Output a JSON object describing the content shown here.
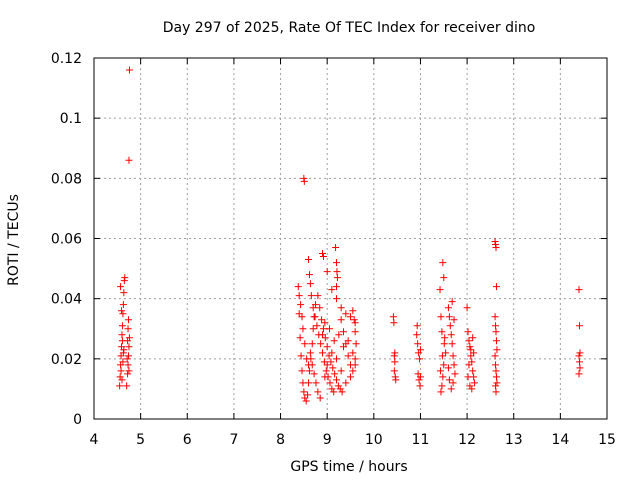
{
  "chart_data": {
    "type": "scatter",
    "title": "Day 297 of 2025, Rate Of TEC Index for receiver dino",
    "xlabel": "GPS time / hours",
    "ylabel": "ROTI / TECUs",
    "xlim": [
      4,
      15
    ],
    "ylim": [
      0,
      0.12
    ],
    "x_ticks": [
      4,
      5,
      6,
      7,
      8,
      9,
      10,
      11,
      12,
      13,
      14,
      15
    ],
    "y_ticks": [
      0,
      0.02,
      0.04,
      0.06,
      0.08,
      0.1,
      0.12
    ],
    "x_tick_labels": [
      "4",
      "5",
      "6",
      "7",
      "8",
      "9",
      "10",
      "11",
      "12",
      "13",
      "14",
      "15"
    ],
    "y_tick_labels": [
      "0",
      "0.02",
      "0.04",
      "0.06",
      "0.08",
      "0.1",
      "0.12"
    ],
    "grid": true,
    "marker": "+",
    "color": "#ff0000",
    "points": [
      [
        4.55,
        0.011
      ],
      [
        4.56,
        0.014
      ],
      [
        4.57,
        0.018
      ],
      [
        4.58,
        0.021
      ],
      [
        4.59,
        0.024
      ],
      [
        4.6,
        0.028
      ],
      [
        4.61,
        0.031
      ],
      [
        4.62,
        0.035
      ],
      [
        4.63,
        0.038
      ],
      [
        4.64,
        0.042
      ],
      [
        4.65,
        0.046
      ],
      [
        4.66,
        0.047
      ],
      [
        4.57,
        0.044
      ],
      [
        4.59,
        0.036
      ],
      [
        4.61,
        0.026
      ],
      [
        4.63,
        0.022
      ],
      [
        4.58,
        0.016
      ],
      [
        4.6,
        0.013
      ],
      [
        4.62,
        0.019
      ],
      [
        4.64,
        0.023
      ],
      [
        4.7,
        0.011
      ],
      [
        4.72,
        0.015
      ],
      [
        4.73,
        0.018
      ],
      [
        4.74,
        0.021
      ],
      [
        4.75,
        0.024
      ],
      [
        4.76,
        0.027
      ],
      [
        4.73,
        0.03
      ],
      [
        4.74,
        0.033
      ],
      [
        4.72,
        0.026
      ],
      [
        4.71,
        0.02
      ],
      [
        4.75,
        0.016
      ],
      [
        4.76,
        0.116
      ],
      [
        4.75,
        0.086
      ],
      [
        8.38,
        0.044
      ],
      [
        8.4,
        0.035
      ],
      [
        8.42,
        0.027
      ],
      [
        8.44,
        0.021
      ],
      [
        8.46,
        0.016
      ],
      [
        8.48,
        0.012
      ],
      [
        8.5,
        0.009
      ],
      [
        8.52,
        0.007
      ],
      [
        8.55,
        0.006
      ],
      [
        8.58,
        0.008
      ],
      [
        8.6,
        0.012
      ],
      [
        8.62,
        0.016
      ],
      [
        8.65,
        0.02
      ],
      [
        8.68,
        0.025
      ],
      [
        8.7,
        0.03
      ],
      [
        8.72,
        0.034
      ],
      [
        8.75,
        0.038
      ],
      [
        8.4,
        0.041
      ],
      [
        8.43,
        0.038
      ],
      [
        8.46,
        0.034
      ],
      [
        8.48,
        0.03
      ],
      [
        8.52,
        0.025
      ],
      [
        8.56,
        0.02
      ],
      [
        8.6,
        0.018
      ],
      [
        8.64,
        0.022
      ],
      [
        8.68,
        0.018
      ],
      [
        8.72,
        0.015
      ],
      [
        8.76,
        0.012
      ],
      [
        8.8,
        0.009
      ],
      [
        8.85,
        0.007
      ],
      [
        8.5,
        0.08
      ],
      [
        8.51,
        0.079
      ],
      [
        8.6,
        0.053
      ],
      [
        8.62,
        0.048
      ],
      [
        8.64,
        0.045
      ],
      [
        8.66,
        0.041
      ],
      [
        8.7,
        0.037
      ],
      [
        8.74,
        0.034
      ],
      [
        8.78,
        0.031
      ],
      [
        8.82,
        0.028
      ],
      [
        8.86,
        0.025
      ],
      [
        8.9,
        0.022
      ],
      [
        8.94,
        0.019
      ],
      [
        8.98,
        0.016
      ],
      [
        9.02,
        0.014
      ],
      [
        9.06,
        0.012
      ],
      [
        9.1,
        0.01
      ],
      [
        9.14,
        0.009
      ],
      [
        8.8,
        0.041
      ],
      [
        8.84,
        0.037
      ],
      [
        8.88,
        0.033
      ],
      [
        8.92,
        0.03
      ],
      [
        8.96,
        0.027
      ],
      [
        9.0,
        0.024
      ],
      [
        9.04,
        0.021
      ],
      [
        9.08,
        0.019
      ],
      [
        9.12,
        0.017
      ],
      [
        9.16,
        0.015
      ],
      [
        9.2,
        0.013
      ],
      [
        9.24,
        0.011
      ],
      [
        9.28,
        0.01
      ],
      [
        9.32,
        0.009
      ],
      [
        8.9,
        0.055
      ],
      [
        8.92,
        0.054
      ],
      [
        9.0,
        0.049
      ],
      [
        9.1,
        0.043
      ],
      [
        9.2,
        0.04
      ],
      [
        9.3,
        0.037
      ],
      [
        9.4,
        0.035
      ],
      [
        9.5,
        0.034
      ],
      [
        9.55,
        0.036
      ],
      [
        9.6,
        0.032
      ],
      [
        9.18,
        0.057
      ],
      [
        9.2,
        0.052
      ],
      [
        9.21,
        0.049
      ],
      [
        9.22,
        0.047
      ],
      [
        9.2,
        0.044
      ],
      [
        8.9,
        0.028
      ],
      [
        8.95,
        0.032
      ],
      [
        9.05,
        0.03
      ],
      [
        9.15,
        0.026
      ],
      [
        9.25,
        0.028
      ],
      [
        9.35,
        0.024
      ],
      [
        9.45,
        0.026
      ],
      [
        9.55,
        0.022
      ],
      [
        9.6,
        0.018
      ],
      [
        9.5,
        0.014
      ],
      [
        9.4,
        0.012
      ],
      [
        9.3,
        0.016
      ],
      [
        9.2,
        0.02
      ],
      [
        9.1,
        0.022
      ],
      [
        9.0,
        0.018
      ],
      [
        8.95,
        0.014
      ],
      [
        9.3,
        0.033
      ],
      [
        9.35,
        0.029
      ],
      [
        9.4,
        0.025
      ],
      [
        9.45,
        0.021
      ],
      [
        9.5,
        0.018
      ],
      [
        9.55,
        0.016
      ],
      [
        9.6,
        0.02
      ],
      [
        9.62,
        0.025
      ],
      [
        9.6,
        0.029
      ],
      [
        9.58,
        0.033
      ],
      [
        10.42,
        0.034
      ],
      [
        10.43,
        0.032
      ],
      [
        10.44,
        0.021
      ],
      [
        10.45,
        0.019
      ],
      [
        10.46,
        0.014
      ],
      [
        10.47,
        0.013
      ],
      [
        10.44,
        0.016
      ],
      [
        10.45,
        0.022
      ],
      [
        10.92,
        0.028
      ],
      [
        10.94,
        0.025
      ],
      [
        10.96,
        0.022
      ],
      [
        10.98,
        0.02
      ],
      [
        11.0,
        0.023
      ],
      [
        10.95,
        0.015
      ],
      [
        10.97,
        0.013
      ],
      [
        10.99,
        0.011
      ],
      [
        11.0,
        0.014
      ],
      [
        10.93,
        0.031
      ],
      [
        11.42,
        0.043
      ],
      [
        11.44,
        0.034
      ],
      [
        11.46,
        0.029
      ],
      [
        11.48,
        0.052
      ],
      [
        11.5,
        0.047
      ],
      [
        11.52,
        0.027
      ],
      [
        11.54,
        0.022
      ],
      [
        11.5,
        0.018
      ],
      [
        11.48,
        0.014
      ],
      [
        11.46,
        0.011
      ],
      [
        11.44,
        0.009
      ],
      [
        11.43,
        0.016
      ],
      [
        11.47,
        0.021
      ],
      [
        11.51,
        0.025
      ],
      [
        11.6,
        0.037
      ],
      [
        11.62,
        0.034
      ],
      [
        11.64,
        0.031
      ],
      [
        11.66,
        0.028
      ],
      [
        11.68,
        0.025
      ],
      [
        11.7,
        0.021
      ],
      [
        11.72,
        0.018
      ],
      [
        11.74,
        0.015
      ],
      [
        11.7,
        0.012
      ],
      [
        11.66,
        0.01
      ],
      [
        11.62,
        0.013
      ],
      [
        11.6,
        0.017
      ],
      [
        11.68,
        0.039
      ],
      [
        11.72,
        0.033
      ],
      [
        12.0,
        0.037
      ],
      [
        12.02,
        0.029
      ],
      [
        12.04,
        0.026
      ],
      [
        12.06,
        0.024
      ],
      [
        12.08,
        0.021
      ],
      [
        12.1,
        0.019
      ],
      [
        12.12,
        0.016
      ],
      [
        12.14,
        0.014
      ],
      [
        12.16,
        0.012
      ],
      [
        12.1,
        0.01
      ],
      [
        12.06,
        0.011
      ],
      [
        12.02,
        0.014
      ],
      [
        12.04,
        0.018
      ],
      [
        12.08,
        0.023
      ],
      [
        12.12,
        0.027
      ],
      [
        12.14,
        0.022
      ],
      [
        12.6,
        0.059
      ],
      [
        12.61,
        0.058
      ],
      [
        12.62,
        0.057
      ],
      [
        12.63,
        0.044
      ],
      [
        12.6,
        0.034
      ],
      [
        12.61,
        0.031
      ],
      [
        12.62,
        0.029
      ],
      [
        12.63,
        0.026
      ],
      [
        12.64,
        0.023
      ],
      [
        12.6,
        0.021
      ],
      [
        12.61,
        0.018
      ],
      [
        12.62,
        0.016
      ],
      [
        12.63,
        0.014
      ],
      [
        12.64,
        0.012
      ],
      [
        12.62,
        0.009
      ],
      [
        12.61,
        0.011
      ],
      [
        14.4,
        0.043
      ],
      [
        14.41,
        0.031
      ],
      [
        14.42,
        0.022
      ],
      [
        14.4,
        0.021
      ],
      [
        14.41,
        0.019
      ],
      [
        14.42,
        0.017
      ],
      [
        14.4,
        0.015
      ]
    ]
  }
}
